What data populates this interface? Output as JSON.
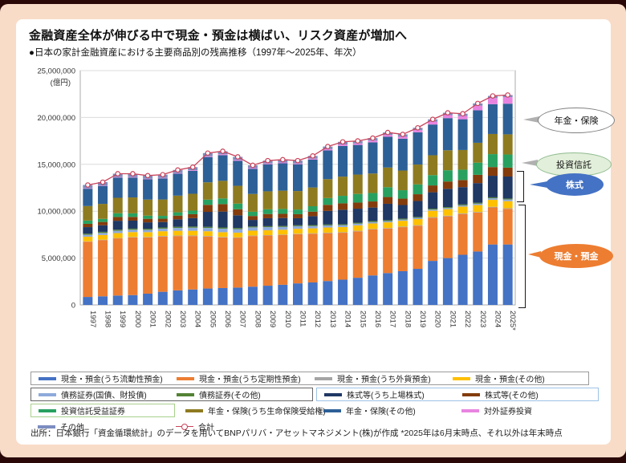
{
  "page": {
    "title": "金融資産全体が伸びる中で現金・預金は横ばい、リスク資産が増加へ",
    "subtitle": "●日本の家計金融資産における主要商品別の残高推移（1997年～2025年、年次）",
    "source": "出所：日本銀行「資金循環統計」のデータを用いてBNPパリバ・アセットマネジメント(株)が作成  *2025年は6月末時点、それ以外は年末時点"
  },
  "chart_data": {
    "type": "stacked-bar-with-line",
    "unit_label": "(億円)",
    "y_axis": {
      "min": 0,
      "max": 25000000,
      "step": 5000000,
      "tick_labels": [
        "25,000,000",
        "20,000,000",
        "15,000,000",
        "10,000,000",
        "5,000,000",
        "0"
      ]
    },
    "categories": [
      "1997",
      "1998",
      "1999",
      "2000",
      "2001",
      "2002",
      "2003",
      "2004",
      "2005",
      "2006",
      "2007",
      "2008",
      "2009",
      "2010",
      "2011",
      "2012",
      "2013",
      "2014",
      "2015",
      "2016",
      "2017",
      "2018",
      "2019",
      "2020",
      "2021",
      "2022",
      "2023",
      "2024",
      "2025*"
    ],
    "series": [
      {
        "name": "現金・預金(うち流動性預金)",
        "color": "#4472c4",
        "values": [
          850000,
          920000,
          1000000,
          1050000,
          1200000,
          1400000,
          1550000,
          1650000,
          1750000,
          1800000,
          1850000,
          1950000,
          2050000,
          2150000,
          2300000,
          2400000,
          2550000,
          2700000,
          2900000,
          3150000,
          3400000,
          3600000,
          3850000,
          4700000,
          5000000,
          5350000,
          5700000,
          6450000,
          6450000
        ]
      },
      {
        "name": "現金・預金(うち定期性預金)",
        "color": "#ed7d31",
        "values": [
          5900000,
          6000000,
          6100000,
          6150000,
          6000000,
          5900000,
          5800000,
          5700000,
          5550000,
          5400000,
          5300000,
          5400000,
          5350000,
          5300000,
          5250000,
          5200000,
          5100000,
          5000000,
          4950000,
          4900000,
          4750000,
          4700000,
          4600000,
          4600000,
          4450000,
          4350000,
          4150000,
          3950000,
          3800000
        ]
      },
      {
        "name": "現金・預金(うち外貨預金)",
        "color": "#a5a5a5",
        "values": [
          30000,
          40000,
          40000,
          50000,
          60000,
          60000,
          60000,
          60000,
          60000,
          60000,
          60000,
          50000,
          50000,
          50000,
          50000,
          50000,
          60000,
          60000,
          60000,
          60000,
          60000,
          60000,
          60000,
          70000,
          70000,
          70000,
          70000,
          70000,
          70000
        ]
      },
      {
        "name": "現金・預金(その他)",
        "color": "#ffc000",
        "values": [
          500000,
          500000,
          520000,
          520000,
          500000,
          500000,
          500000,
          500000,
          500000,
          500000,
          500000,
          520000,
          520000,
          520000,
          520000,
          520000,
          550000,
          550000,
          580000,
          580000,
          600000,
          620000,
          650000,
          680000,
          700000,
          720000,
          730000,
          740000,
          750000
        ]
      },
      {
        "name": "債務証券(国債、財投債)",
        "color": "#8eaadb",
        "values": [
          200000,
          220000,
          250000,
          250000,
          250000,
          280000,
          300000,
          330000,
          350000,
          380000,
          380000,
          350000,
          330000,
          300000,
          280000,
          250000,
          220000,
          200000,
          180000,
          150000,
          130000,
          130000,
          130000,
          120000,
          120000,
          130000,
          150000,
          170000,
          180000
        ]
      },
      {
        "name": "債務証券(その他)",
        "color": "#548235",
        "values": [
          120000,
          120000,
          120000,
          120000,
          120000,
          120000,
          120000,
          120000,
          120000,
          120000,
          120000,
          100000,
          100000,
          100000,
          100000,
          100000,
          100000,
          100000,
          100000,
          100000,
          100000,
          100000,
          100000,
          100000,
          100000,
          100000,
          100000,
          100000,
          100000
        ]
      },
      {
        "name": "株式等(うち上場株式)",
        "color": "#1f3864",
        "values": [
          700000,
          700000,
          950000,
          850000,
          680000,
          580000,
          800000,
          900000,
          1600000,
          1700000,
          1350000,
          700000,
          850000,
          850000,
          750000,
          950000,
          1450000,
          1550000,
          1500000,
          1450000,
          1750000,
          1450000,
          1700000,
          1750000,
          1950000,
          1850000,
          2100000,
          2300000,
          2350000
        ]
      },
      {
        "name": "株式等(その他)",
        "color": "#843c0c",
        "values": [
          350000,
          350000,
          400000,
          400000,
          380000,
          360000,
          400000,
          420000,
          750000,
          800000,
          650000,
          420000,
          450000,
          450000,
          430000,
          480000,
          650000,
          680000,
          650000,
          650000,
          720000,
          680000,
          720000,
          730000,
          780000,
          760000,
          880000,
          930000,
          950000
        ]
      },
      {
        "name": "投資信託受益証券",
        "color": "#28a160",
        "values": [
          350000,
          330000,
          400000,
          380000,
          330000,
          300000,
          350000,
          380000,
          550000,
          600000,
          600000,
          450000,
          500000,
          520000,
          500000,
          580000,
          720000,
          800000,
          920000,
          900000,
          1050000,
          900000,
          1050000,
          1100000,
          1200000,
          1100000,
          1300000,
          1380000,
          1400000
        ]
      },
      {
        "name": "年金・保険(うち生命保険受給権)",
        "color": "#8e7b20",
        "values": [
          1550000,
          1600000,
          1650000,
          1700000,
          1720000,
          1750000,
          1780000,
          1800000,
          1850000,
          1880000,
          1900000,
          1900000,
          1920000,
          1950000,
          1970000,
          2000000,
          2020000,
          2050000,
          2070000,
          2080000,
          2100000,
          2100000,
          2120000,
          2120000,
          2130000,
          2100000,
          2120000,
          2150000,
          2150000
        ]
      },
      {
        "name": "年金・保険(その他)",
        "color": "#2d6096",
        "values": [
          1850000,
          1920000,
          2160000,
          2120000,
          2160000,
          2250000,
          2340000,
          2440000,
          2700000,
          2740000,
          2670000,
          2680000,
          2890000,
          2920000,
          2860000,
          2980000,
          3070000,
          3280000,
          3160000,
          3330000,
          3280000,
          3400000,
          3440000,
          3280000,
          3430000,
          3280000,
          3460000,
          3180000,
          3270000
        ]
      },
      {
        "name": "対外証券投資",
        "color": "#e884e0",
        "values": [
          50000,
          50000,
          60000,
          60000,
          60000,
          60000,
          70000,
          70000,
          90000,
          100000,
          100000,
          80000,
          90000,
          90000,
          90000,
          100000,
          130000,
          150000,
          160000,
          180000,
          200000,
          200000,
          230000,
          300000,
          320000,
          350000,
          500000,
          650000,
          700000
        ]
      },
      {
        "name": "その他",
        "color": "#7c8dbf",
        "values": [
          350000,
          350000,
          350000,
          350000,
          340000,
          340000,
          330000,
          330000,
          330000,
          320000,
          320000,
          300000,
          300000,
          300000,
          300000,
          290000,
          280000,
          280000,
          270000,
          270000,
          260000,
          260000,
          250000,
          250000,
          250000,
          240000,
          240000,
          230000,
          230000
        ]
      }
    ],
    "total_series": {
      "name": "合計",
      "color": "#c9435a",
      "values": [
        12800000,
        13100000,
        14000000,
        14000000,
        13800000,
        13900000,
        14400000,
        14700000,
        16200000,
        16400000,
        15800000,
        14900000,
        15400000,
        15500000,
        15400000,
        15900000,
        16900000,
        17400000,
        17500000,
        17800000,
        18400000,
        18200000,
        18900000,
        19800000,
        20500000,
        20400000,
        21500000,
        22300000,
        22400000
      ]
    },
    "legend": {
      "rows": [
        {
          "boxes": [
            {
              "border": "#9a9a9a",
              "items": [
                0,
                1,
                2,
                3
              ]
            }
          ]
        },
        {
          "boxes": [
            {
              "border": "#666666",
              "items": [
                4,
                5
              ]
            },
            {
              "border": "#9dc3e6",
              "items": [
                6,
                7
              ]
            }
          ]
        },
        {
          "boxes": [
            {
              "border": "#a9d18e",
              "items": [
                8
              ]
            },
            {
              "border": "none",
              "items": [
                9,
                10,
                11
              ]
            }
          ]
        },
        {
          "boxes": [
            {
              "border": "none",
              "items": [
                12,
                13
              ]
            }
          ]
        }
      ]
    },
    "callouts": [
      {
        "label": "年金・保険",
        "bg": "#ffffff",
        "border": "#808080",
        "text": "#111111"
      },
      {
        "label": "投資信託",
        "bg": "#e2efda",
        "border": "#8fbc8f",
        "text": "#111111"
      },
      {
        "label": "株式",
        "bg": "#4472c4",
        "border": "none",
        "text": "#ffffff"
      },
      {
        "label": "現金・預金",
        "bg": "#ed7d31",
        "border": "none",
        "text": "#ffffff"
      }
    ]
  }
}
